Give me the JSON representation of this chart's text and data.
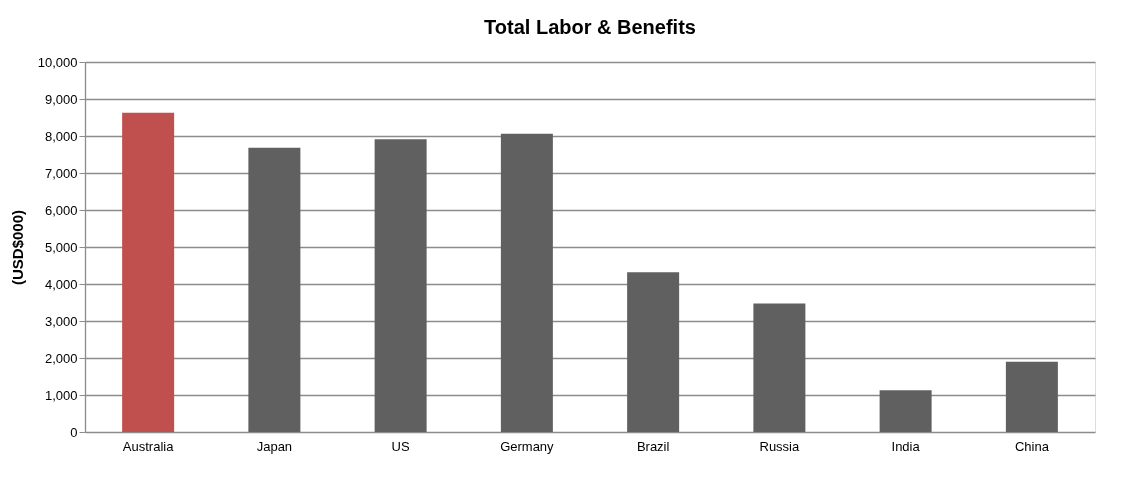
{
  "chart_data": {
    "type": "bar",
    "title": "Total Labor & Benefits",
    "ylabel": "(USD$000)",
    "categories": [
      "Australia",
      "Japan",
      "US",
      "Germany",
      "Brazil",
      "Russia",
      "India",
      "China"
    ],
    "values": [
      8630,
      7680,
      7910,
      8060,
      4320,
      3470,
      1130,
      1900
    ],
    "colors": [
      "#c0504d",
      "#606060",
      "#606060",
      "#606060",
      "#606060",
      "#606060",
      "#606060",
      "#606060"
    ],
    "ylim": [
      0,
      10000
    ],
    "yticks": [
      {
        "value": 0,
        "label": "0"
      },
      {
        "value": 1000,
        "label": "1,000"
      },
      {
        "value": 2000,
        "label": "2,000"
      },
      {
        "value": 3000,
        "label": "3,000"
      },
      {
        "value": 4000,
        "label": "4,000"
      },
      {
        "value": 5000,
        "label": "5,000"
      },
      {
        "value": 6000,
        "label": "6,000"
      },
      {
        "value": 7000,
        "label": "7,000"
      },
      {
        "value": 8000,
        "label": "8,000"
      },
      {
        "value": 9000,
        "label": "9,000"
      },
      {
        "value": 10000,
        "label": "10,000"
      }
    ],
    "grid": "y",
    "legend": false
  }
}
